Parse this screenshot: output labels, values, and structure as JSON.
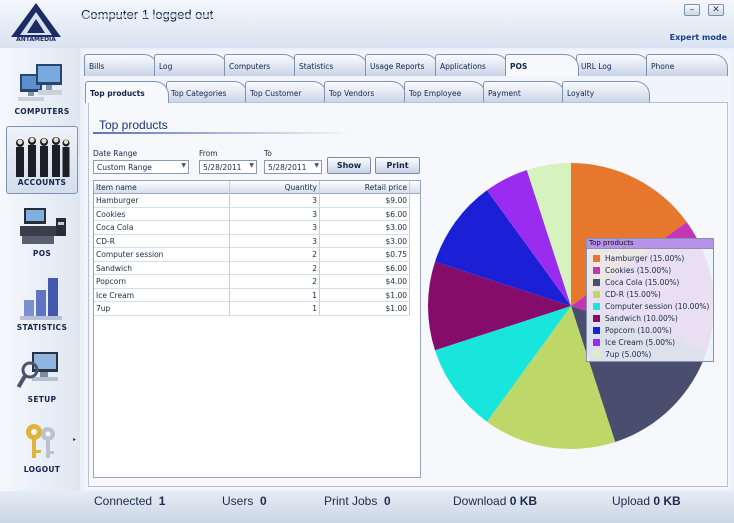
{
  "app": {
    "logo_text": "ANTAMEDIA",
    "window_title": "Computer 1 logged out",
    "mode_link": "Expert mode",
    "minimize_glyph": "–",
    "close_glyph": "✕"
  },
  "sidebar": {
    "items": [
      {
        "label": "COMPUTERS",
        "icon": "computers-icon"
      },
      {
        "label": "ACCOUNTS",
        "icon": "accounts-icon",
        "active": true
      },
      {
        "label": "POS",
        "icon": "pos-icon"
      },
      {
        "label": "STATISTICS",
        "icon": "statistics-icon"
      },
      {
        "label": "SETUP",
        "icon": "setup-icon"
      },
      {
        "label": "LOGOUT",
        "icon": "logout-icon"
      }
    ]
  },
  "tabs": {
    "main": [
      "Bills",
      "Log",
      "Computers",
      "Statistics",
      "Usage Reports",
      "Applications",
      "POS",
      "URL Log",
      "Phone"
    ],
    "main_active": "POS",
    "sub": [
      "Top products",
      "Top Categories",
      "Top Customer",
      "Top Vendors",
      "Top Employee",
      "Payment",
      "Loyalty"
    ],
    "sub_active": "Top products"
  },
  "report": {
    "title": "Top products",
    "date_range_label": "Date Range",
    "date_range_value": "Custom Range",
    "from_label": "From",
    "from_value": "5/28/2011",
    "to_label": "To",
    "to_value": "5/28/2011",
    "show_label": "Show",
    "print_label": "Print"
  },
  "table": {
    "columns": [
      "Item name",
      "Quantity",
      "Retail price"
    ],
    "rows": [
      [
        "Hamburger",
        "3",
        "$9.00"
      ],
      [
        "Cookies",
        "3",
        "$6.00"
      ],
      [
        "Coca Cola",
        "3",
        "$3.00"
      ],
      [
        "CD-R",
        "3",
        "$3.00"
      ],
      [
        "Computer session",
        "2",
        "$0.75"
      ],
      [
        "Sandwich",
        "2",
        "$6.00"
      ],
      [
        "Popcorn",
        "2",
        "$4.00"
      ],
      [
        "Ice Cream",
        "1",
        "$1.00"
      ],
      [
        "7up",
        "1",
        "$1.00"
      ]
    ]
  },
  "chart_data": {
    "type": "pie",
    "legend_title": "Top products",
    "legend_position": "right",
    "slices": [
      {
        "label": "Hamburger (15.00%)",
        "value": 15,
        "color": "#e8772e"
      },
      {
        "label": "Cookies (15.00%)",
        "value": 15,
        "color": "#c238b4"
      },
      {
        "label": "Coca Cola (15.00%)",
        "value": 15,
        "color": "#4a4e6e"
      },
      {
        "label": "CD-R (15.00%)",
        "value": 15,
        "color": "#bdd769"
      },
      {
        "label": "Computer session (10.00%)",
        "value": 10,
        "color": "#18e6dd"
      },
      {
        "label": "Sandwich (10.00%)",
        "value": 10,
        "color": "#850c6a"
      },
      {
        "label": "Popcorn (10.00%)",
        "value": 10,
        "color": "#1b1fd6"
      },
      {
        "label": "Ice Cream (5.00%)",
        "value": 5,
        "color": "#9a2cf0"
      },
      {
        "label": "7up (5.00%)",
        "value": 5,
        "color": "#d6f3bf"
      }
    ]
  },
  "status": {
    "connected_label": "Connected",
    "connected_value": "1",
    "users_label": "Users",
    "users_value": "0",
    "print_label": "Print Jobs",
    "print_value": "0",
    "download_label": "Download",
    "download_value": "0 KB",
    "upload_label": "Upload",
    "upload_value": "0 KB"
  }
}
